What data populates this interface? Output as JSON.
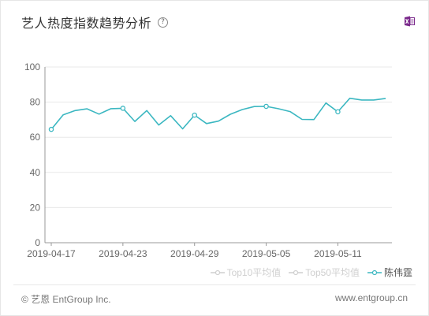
{
  "header": {
    "title": "艺人热度指数趋势分析",
    "help_glyph": "?"
  },
  "colors": {
    "series": "#3bb7c1",
    "legend_inactive": "#cfcfcf",
    "axis": "#999999",
    "grid": "#e8e8e8",
    "excel": "#7b2a8c"
  },
  "chart_data": {
    "type": "line",
    "x": [
      "2019-04-17",
      "2019-04-18",
      "2019-04-19",
      "2019-04-20",
      "2019-04-21",
      "2019-04-22",
      "2019-04-23",
      "2019-04-24",
      "2019-04-25",
      "2019-04-26",
      "2019-04-27",
      "2019-04-28",
      "2019-04-29",
      "2019-04-30",
      "2019-05-01",
      "2019-05-02",
      "2019-05-03",
      "2019-05-04",
      "2019-05-05",
      "2019-05-06",
      "2019-05-07",
      "2019-05-08",
      "2019-05-09",
      "2019-05-10",
      "2019-05-11",
      "2019-05-12",
      "2019-05-13",
      "2019-05-14",
      "2019-05-15"
    ],
    "x_ticks": [
      "2019-04-17",
      "2019-04-23",
      "2019-04-29",
      "2019-05-05",
      "2019-05-11"
    ],
    "ylim": [
      0,
      100
    ],
    "y_ticks": [
      0,
      20,
      40,
      60,
      80,
      100
    ],
    "series": [
      {
        "name": "陈伟霆",
        "values": [
          64.5,
          72.8,
          75.2,
          76.2,
          73.2,
          76.3,
          76.5,
          69.0,
          75.2,
          67.0,
          72.3,
          64.8,
          72.6,
          67.8,
          69.2,
          73.1,
          75.8,
          77.5,
          77.6,
          76.3,
          74.6,
          70.2,
          70.1,
          79.5,
          74.5,
          82.2,
          81.2,
          81.2,
          82.1
        ],
        "marker_x": [
          "2019-04-17",
          "2019-04-23",
          "2019-04-29",
          "2019-05-05",
          "2019-05-11"
        ]
      }
    ],
    "legend": [
      "Top10平均值",
      "Top50平均值",
      "陈伟霆"
    ],
    "legend_position": "bottom-right",
    "grid": true
  },
  "footer": {
    "copyright": "© 艺恩 EntGroup Inc.",
    "website": "www.entgroup.cn"
  }
}
